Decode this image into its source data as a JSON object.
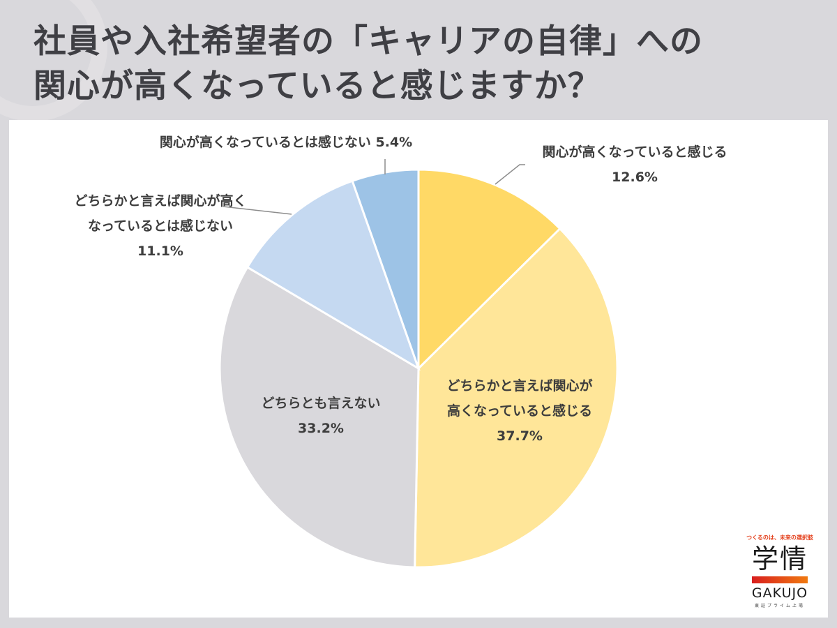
{
  "title": {
    "line1": "社員や入社希望者の「キャリアの自律」への",
    "line2": "関心が高くなっていると感じますか？"
  },
  "chart_data": {
    "type": "pie",
    "title": "社員や入社希望者の「キャリアの自律」への関心が高くなっていると感じますか？",
    "start_angle": "12 o'clock",
    "direction": "clockwise",
    "categories": [
      "関心が高くなっていると感じる",
      "どちらかと言えば関心が高くなっていると感じる",
      "どちらとも言えない",
      "どちらかと言えば関心が高くなっているとは感じない",
      "関心が高くなっているとは感じない"
    ],
    "values": [
      12.6,
      37.7,
      33.2,
      11.1,
      5.4
    ],
    "unit": "%",
    "colors": [
      "#ffd966",
      "#ffe699",
      "#d9d8dc",
      "#c5d9f1",
      "#9dc3e6"
    ],
    "legend": "none (data labels on/around slices)"
  },
  "labels": {
    "s1": {
      "line1": "関心が高くなっていると感じる",
      "pct": "12.6%"
    },
    "s2": {
      "line1": "どちらかと言えば関心が",
      "line2": "高くなっていると感じる",
      "pct": "37.7%"
    },
    "s3": {
      "line1": "どちらとも言えない",
      "pct": "33.2%"
    },
    "s4": {
      "line1": "どちらかと言えば関心が高く",
      "line2": "なっているとは感じない",
      "pct": "11.1%"
    },
    "s5": {
      "line1": "関心が高くなっているとは感じない 5.4%"
    }
  },
  "logo": {
    "tagline": "つくるのは、未来の選択肢",
    "kanji": "学情",
    "english": "GAKUJO",
    "sub": "東証プライム上場"
  }
}
